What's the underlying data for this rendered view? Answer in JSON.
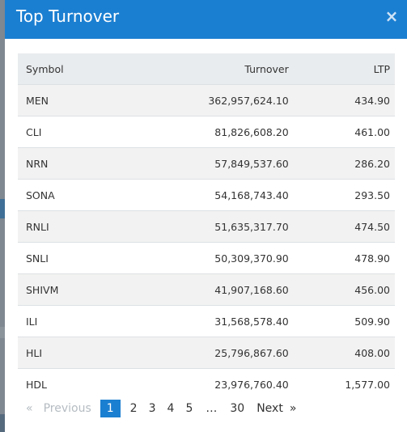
{
  "modal": {
    "title": "Top Turnover",
    "close_icon": "×"
  },
  "table": {
    "headers": {
      "symbol": "Symbol",
      "turnover": "Turnover",
      "ltp": "LTP"
    },
    "rows": [
      {
        "symbol": "MEN",
        "turnover": "362,957,624.10",
        "ltp": "434.90"
      },
      {
        "symbol": "CLI",
        "turnover": "81,826,608.20",
        "ltp": "461.00"
      },
      {
        "symbol": "NRN",
        "turnover": "57,849,537.60",
        "ltp": "286.20"
      },
      {
        "symbol": "SONA",
        "turnover": "54,168,743.40",
        "ltp": "293.50"
      },
      {
        "symbol": "RNLI",
        "turnover": "51,635,317.70",
        "ltp": "474.50"
      },
      {
        "symbol": "SNLI",
        "turnover": "50,309,370.90",
        "ltp": "478.90"
      },
      {
        "symbol": "SHIVM",
        "turnover": "41,907,168.60",
        "ltp": "456.00"
      },
      {
        "symbol": "ILI",
        "turnover": "31,568,578.40",
        "ltp": "509.90"
      },
      {
        "symbol": "HLI",
        "turnover": "25,796,867.60",
        "ltp": "408.00"
      },
      {
        "symbol": "HDL",
        "turnover": "23,976,760.40",
        "ltp": "1,577.00"
      }
    ]
  },
  "pagination": {
    "laquo": "«",
    "previous": "Previous",
    "pages": [
      "1",
      "2",
      "3",
      "4",
      "5"
    ],
    "ellipsis": "…",
    "last": "30",
    "next": "Next",
    "raquo": "»",
    "current": "1"
  },
  "colors": {
    "header_bg": "#1b7fd1",
    "active_page_bg": "#1b7fd1",
    "table_header_bg": "#e9ecee",
    "stripe_bg": "#f2f2f2"
  }
}
